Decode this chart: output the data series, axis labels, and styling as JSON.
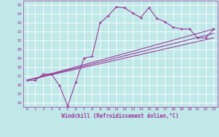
{
  "xlabel": "Windchill (Refroidissement éolien,°C)",
  "ylim": [
    13.5,
    25.5
  ],
  "xlim": [
    -0.5,
    23.5
  ],
  "yticks": [
    14,
    15,
    16,
    17,
    18,
    19,
    20,
    21,
    22,
    23,
    24,
    25
  ],
  "xticks": [
    0,
    1,
    2,
    3,
    4,
    5,
    6,
    7,
    8,
    9,
    10,
    11,
    12,
    13,
    14,
    15,
    16,
    17,
    18,
    19,
    20,
    21,
    22,
    23
  ],
  "bg_color": "#c0e8e8",
  "line_color": "#993399",
  "grid_color": "#ffffff",
  "lines": [
    {
      "x": [
        0,
        1,
        2,
        3,
        4,
        5,
        6,
        7,
        8,
        9,
        10,
        11,
        12,
        13,
        14,
        15,
        16,
        17,
        18,
        19,
        20,
        21,
        22,
        23
      ],
      "y": [
        16.5,
        16.5,
        17.2,
        17.2,
        15.9,
        13.6,
        16.3,
        19.0,
        19.2,
        23.0,
        23.8,
        24.8,
        24.7,
        24.1,
        23.6,
        24.7,
        23.5,
        23.1,
        22.5,
        22.3,
        22.3,
        21.3,
        21.3,
        22.3
      ],
      "marker": true
    },
    {
      "x": [
        0,
        23
      ],
      "y": [
        16.5,
        22.3
      ],
      "marker": false
    },
    {
      "x": [
        0,
        23
      ],
      "y": [
        16.5,
        21.5
      ],
      "marker": false
    },
    {
      "x": [
        0,
        23
      ],
      "y": [
        16.5,
        22.3
      ],
      "marker": false
    }
  ]
}
